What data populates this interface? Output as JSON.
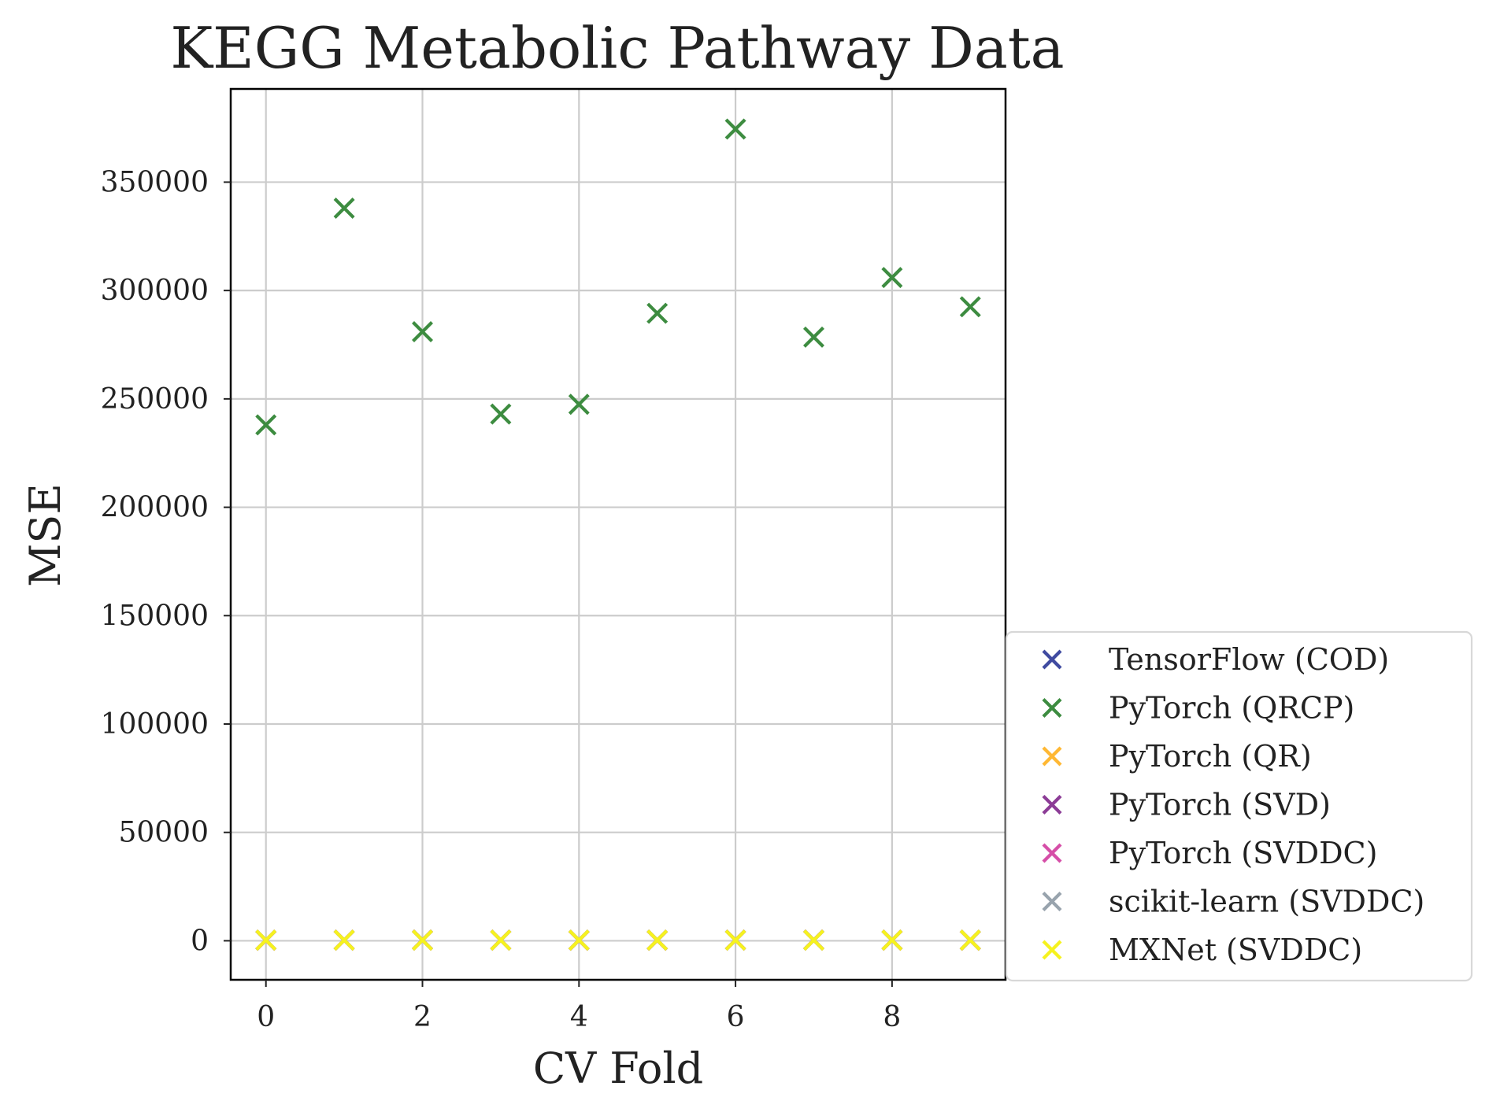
{
  "chart_data": {
    "type": "scatter",
    "title": "KEGG Metabolic Pathway Data",
    "xlabel": "CV Fold",
    "ylabel": "MSE",
    "xlim": [
      -0.45,
      9.45
    ],
    "ylim": [
      -18000,
      393000
    ],
    "xticks": [
      0,
      2,
      4,
      6,
      8
    ],
    "xtick_labels": [
      "0",
      "2",
      "4",
      "6",
      "8"
    ],
    "yticks": [
      0,
      50000,
      100000,
      150000,
      200000,
      250000,
      300000,
      350000
    ],
    "ytick_labels": [
      "0",
      "50000",
      "100000",
      "150000",
      "200000",
      "250000",
      "300000",
      "350000"
    ],
    "grid": true,
    "legend_position": "lower-right-outside",
    "marker": "x",
    "x": [
      0,
      1,
      2,
      3,
      4,
      5,
      6,
      7,
      8,
      9
    ],
    "series": [
      {
        "name": "TensorFlow (COD)",
        "color": "#3f4aa0",
        "values": [
          300,
          300,
          300,
          300,
          300,
          300,
          300,
          300,
          300,
          300
        ]
      },
      {
        "name": "PyTorch (QRCP)",
        "color": "#3d8c40",
        "values": [
          238000,
          338000,
          281000,
          243000,
          247500,
          289500,
          374500,
          278500,
          306000,
          292500
        ]
      },
      {
        "name": "PyTorch (QR)",
        "color": "#ffb833",
        "values": [
          300,
          300,
          300,
          300,
          300,
          300,
          300,
          300,
          300,
          300
        ]
      },
      {
        "name": "PyTorch (SVD)",
        "color": "#8c3c96",
        "values": [
          300,
          300,
          300,
          300,
          300,
          300,
          300,
          300,
          300,
          300
        ]
      },
      {
        "name": "PyTorch (SVDDC)",
        "color": "#d64fa8",
        "values": [
          300,
          300,
          300,
          300,
          300,
          300,
          300,
          300,
          300,
          300
        ]
      },
      {
        "name": "scikit-learn (SVDDC)",
        "color": "#98a3ad",
        "values": [
          300,
          300,
          300,
          300,
          300,
          300,
          300,
          300,
          300,
          300
        ]
      },
      {
        "name": "MXNet (SVDDC)",
        "color": "#f6f21f",
        "values": [
          300,
          300,
          300,
          300,
          300,
          300,
          300,
          300,
          300,
          300
        ]
      }
    ]
  }
}
